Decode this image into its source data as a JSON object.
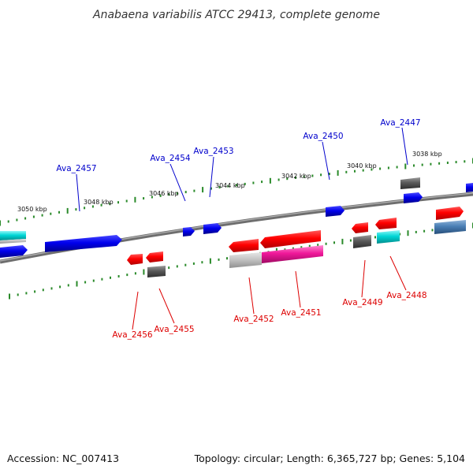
{
  "title": "Anabaena variabilis ATCC 29413, complete genome",
  "footer": {
    "accession": "Accession: NC_007413",
    "summary": "Topology: circular; Length: 6,365,727 bp; Genes: 5,104"
  },
  "colors": {
    "label_top": "#0000cc",
    "label_bottom": "#dd0000",
    "ticks": "#2a8a2a",
    "backbone": "#7a7a7a"
  },
  "kbp_labels": [
    "3050 kbp",
    "3048 kbp",
    "3046 kbp",
    "3044 kbp",
    "3042 kbp",
    "3040 kbp",
    "3038 kbp"
  ],
  "gene_labels_top": [
    "Ava_2457",
    "Ava_2454",
    "Ava_2453",
    "Ava_2450",
    "Ava_2447"
  ],
  "gene_labels_bottom": [
    "Ava_2456",
    "Ava_2455",
    "Ava_2452",
    "Ava_2451",
    "Ava_2449",
    "Ava_2448"
  ],
  "feature_colors": [
    "red",
    "blue",
    "grey",
    "cyan",
    "pink",
    "steel-blue",
    "light-grey"
  ]
}
